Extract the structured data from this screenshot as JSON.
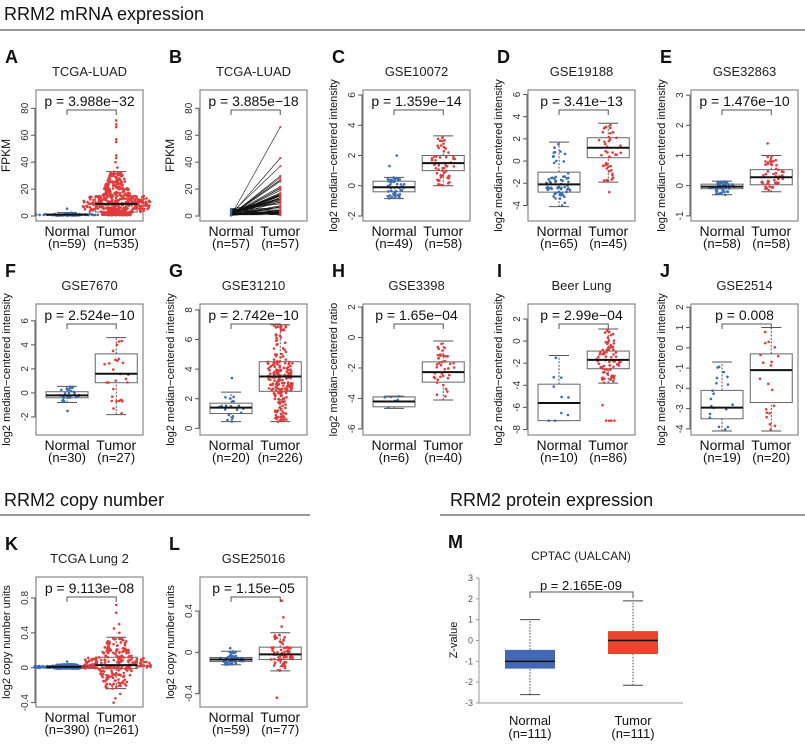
{
  "sections": {
    "mrna": "RRM2 mRNA expression",
    "copy": "RRM2 copy number",
    "protein": "RRM2 protein expression"
  },
  "colors": {
    "normal": "#3b6db3",
    "tumor": "#e23b3b",
    "normal_fill": "#4467b8",
    "tumor_fill": "#e8452c"
  },
  "chart_data": [
    {
      "letter": "A",
      "type": "box",
      "style": "swarm",
      "title": "TCGA-LUAD",
      "p": "p = 3.988e−32",
      "ylabel": "FPKM",
      "yticks": [
        0,
        20,
        40,
        60,
        80
      ],
      "ylim": [
        -3.7,
        93.6
      ],
      "groups": [
        {
          "name": "Normal",
          "n_label": "(n=59)",
          "n": 59,
          "stats": [
            0.3,
            0.7,
            1,
            1.4,
            2.5
          ],
          "outliers": [
            5.5
          ]
        },
        {
          "name": "Tumor",
          "n_label": "(n=535)",
          "n": 535,
          "stats": [
            0.5,
            3,
            9,
            15,
            33
          ],
          "outliers": [
            36,
            40,
            43,
            45,
            55,
            57,
            66,
            68,
            71
          ]
        }
      ]
    },
    {
      "letter": "B",
      "type": "paired-line",
      "title": "TCGA-LUAD",
      "p": "p = 3.885e−18",
      "ylabel": "FPKM",
      "yticks": [
        0,
        20,
        40,
        60,
        80
      ],
      "ylim": [
        -3.7,
        93.6
      ],
      "groups": [
        {
          "name": "Normal",
          "n_label": "(n=57)",
          "n": 57,
          "stats": [
            0.3,
            0.7,
            1,
            1.4,
            5.5
          ],
          "outliers": []
        },
        {
          "name": "Tumor",
          "n_label": "(n=57)",
          "n": 57,
          "stats": [
            0.5,
            4,
            9,
            16,
            30
          ],
          "outliers": [
            37,
            43,
            66
          ]
        }
      ]
    },
    {
      "letter": "C",
      "type": "box",
      "title": "GSE10072",
      "p": "p = 1.359e−14",
      "ylabel": "log2 median−centered intensity",
      "yticks": [
        -2,
        0,
        2,
        4,
        6
      ],
      "ylim": [
        -2.33,
        6.33
      ],
      "groups": [
        {
          "name": "Normal",
          "n_label": "(n=49)",
          "n": 49,
          "stats": [
            -0.85,
            -0.4,
            -0.1,
            0.3,
            0.55
          ],
          "outliers": [
            1.3,
            2.0
          ]
        },
        {
          "name": "Tumor",
          "n_label": "(n=58)",
          "n": 58,
          "stats": [
            0.0,
            1.0,
            1.5,
            2.0,
            3.3
          ],
          "outliers": []
        }
      ]
    },
    {
      "letter": "D",
      "type": "box",
      "title": "GSE19188",
      "p": "p = 3.41e−13",
      "ylabel": "log2 median−centered intensity",
      "yticks": [
        -4,
        -2,
        0,
        2,
        4,
        6
      ],
      "ylim": [
        -5.4,
        6.4
      ],
      "groups": [
        {
          "name": "Normal",
          "n_label": "(n=65)",
          "n": 65,
          "stats": [
            -4.1,
            -2.8,
            -2.1,
            -1.0,
            1.7
          ],
          "outliers": []
        },
        {
          "name": "Tumor",
          "n_label": "(n=45)",
          "n": 45,
          "stats": [
            -1.9,
            0.3,
            1.2,
            2.1,
            3.4
          ],
          "outliers": [
            -2.8
          ]
        }
      ]
    },
    {
      "letter": "E",
      "type": "box",
      "title": "GSE32863",
      "p": "p = 1.476e−10",
      "ylabel": "log2 median−centered intensity",
      "yticks": [
        -1,
        0,
        1,
        2,
        3
      ],
      "ylim": [
        -1.17,
        3.17
      ],
      "groups": [
        {
          "name": "Normal",
          "n_label": "(n=58)",
          "n": 58,
          "stats": [
            -0.3,
            -0.1,
            -0.03,
            0.05,
            0.15
          ],
          "outliers": []
        },
        {
          "name": "Tumor",
          "n_label": "(n=58)",
          "n": 58,
          "stats": [
            -0.2,
            0.03,
            0.28,
            0.53,
            1.0
          ],
          "outliers": [
            1.4
          ]
        }
      ]
    },
    {
      "letter": "F",
      "type": "box",
      "title": "GSE7670",
      "p": "p = 2.524e−10",
      "ylabel": "log2 median−centered intensity",
      "yticks": [
        -2,
        0,
        2,
        4,
        6
      ],
      "ylim": [
        -3.5,
        7.4
      ],
      "groups": [
        {
          "name": "Normal",
          "n_label": "(n=30)",
          "n": 30,
          "stats": [
            -0.8,
            -0.4,
            -0.2,
            0.1,
            0.55
          ],
          "outliers": [
            -1.5
          ]
        },
        {
          "name": "Tumor",
          "n_label": "(n=27)",
          "n": 27,
          "stats": [
            -1.8,
            0.85,
            1.6,
            3.25,
            4.6
          ],
          "outliers": []
        }
      ]
    },
    {
      "letter": "G",
      "type": "box",
      "title": "GSE31210",
      "p": "p = 2.742e−10",
      "ylabel": "log2 median−centered intensity",
      "yticks": [
        0,
        2,
        4,
        6,
        8
      ],
      "ylim": [
        -0.45,
        8.4
      ],
      "groups": [
        {
          "name": "Normal",
          "n_label": "(n=20)",
          "n": 20,
          "stats": [
            0.45,
            1.0,
            1.4,
            1.7,
            2.45
          ],
          "outliers": [
            3.4
          ]
        },
        {
          "name": "Tumor",
          "n_label": "(n=226)",
          "n": 226,
          "stats": [
            0.45,
            2.5,
            3.5,
            4.5,
            7.0
          ],
          "outliers": []
        }
      ]
    },
    {
      "letter": "H",
      "type": "box",
      "title": "GSE3398",
      "p": "p = 1.65e−04",
      "ylabel": "log2 median−centered ratio",
      "yticks": [
        -6,
        -4,
        -2,
        0,
        2
      ],
      "ylim": [
        -6.4,
        2.2
      ],
      "groups": [
        {
          "name": "Normal",
          "n_label": "(n=6)",
          "n": 6,
          "stats": [
            -4.65,
            -4.55,
            -4.2,
            -3.9,
            -3.85
          ],
          "outliers": []
        },
        {
          "name": "Tumor",
          "n_label": "(n=40)",
          "n": 40,
          "stats": [
            -4.1,
            -2.93,
            -2.27,
            -1.6,
            -0.23
          ],
          "outliers": []
        }
      ]
    },
    {
      "letter": "I",
      "type": "box",
      "title": "Beer Lung",
      "p": "p = 2.99e−04",
      "ylabel": "log2 median−centered intensity",
      "yticks": [
        -8,
        -6,
        -4,
        -2,
        0,
        2
      ],
      "ylim": [
        -8.5,
        3.36
      ],
      "groups": [
        {
          "name": "Normal",
          "n_label": "(n=10)",
          "n": 10,
          "stats": [
            -7.2,
            -7.2,
            -5.6,
            -3.9,
            -1.3
          ],
          "outliers": []
        },
        {
          "name": "Tumor",
          "n_label": "(n=86)",
          "n": 86,
          "stats": [
            -3.8,
            -2.5,
            -1.7,
            -0.9,
            1.1
          ],
          "outliers": [
            -5.8,
            -7.2,
            -7.2,
            -7.2,
            -7.2
          ]
        }
      ]
    },
    {
      "letter": "J",
      "type": "box",
      "title": "GSE2514",
      "p": "p = 0.008",
      "ylabel": "log2 median−centered intensity",
      "yticks": [
        -4,
        -3,
        -2,
        -1,
        0,
        1,
        2
      ],
      "ylim": [
        -4.3,
        2.16
      ],
      "groups": [
        {
          "name": "Normal",
          "n_label": "(n=19)",
          "n": 19,
          "stats": [
            -4.1,
            -3.5,
            -2.95,
            -2.1,
            -0.7
          ],
          "outliers": []
        },
        {
          "name": "Tumor",
          "n_label": "(n=20)",
          "n": 20,
          "stats": [
            -4.1,
            -2.7,
            -1.1,
            -0.3,
            1.0
          ],
          "outliers": []
        }
      ]
    },
    {
      "letter": "K",
      "type": "box",
      "style": "swarm",
      "title": "TCGA Lung 2",
      "p": "p = 9.113e−08",
      "ylabel": "log2 copy number units",
      "yticks": [
        -0.4,
        0.0,
        0.4,
        0.8
      ],
      "ylim": [
        -0.45,
        1.04
      ],
      "groups": [
        {
          "name": "Normal",
          "n_label": "(n=390)",
          "n": 390,
          "stats": [
            -0.01,
            0.0,
            0.01,
            0.02,
            0.04
          ],
          "outliers": [
            0.07
          ]
        },
        {
          "name": "Tumor",
          "n_label": "(n=261)",
          "n": 261,
          "stats": [
            -0.24,
            -0.01,
            0.03,
            0.12,
            0.35
          ],
          "outliers": [
            -0.3,
            -0.35,
            -0.4,
            0.4,
            0.45,
            0.5,
            0.63,
            0.72
          ]
        }
      ]
    },
    {
      "letter": "L",
      "type": "box",
      "title": "GSE25016",
      "p": "p = 1.15e−05",
      "ylabel": "log2 copy number units",
      "yticks": [
        -0.4,
        0.0,
        0.4
      ],
      "ylim": [
        -0.53,
        0.73
      ],
      "groups": [
        {
          "name": "Normal",
          "n_label": "(n=59)",
          "n": 59,
          "stats": [
            -0.12,
            -0.09,
            -0.07,
            -0.05,
            0.01
          ],
          "outliers": [
            0.04
          ]
        },
        {
          "name": "Tumor",
          "n_label": "(n=77)",
          "n": 77,
          "stats": [
            -0.18,
            -0.07,
            -0.02,
            0.05,
            0.19
          ],
          "outliers": [
            0.25,
            0.34,
            0.5,
            -0.44
          ]
        }
      ]
    },
    {
      "letter": "M",
      "type": "box",
      "style": "filled",
      "title": "CPTAC (UALCAN)",
      "p": "p = 2.165E-09",
      "ylabel": "Z-value",
      "yticks": [
        -3,
        -2,
        -1,
        0,
        1,
        2,
        3
      ],
      "ylim": [
        -3,
        3
      ],
      "groups": [
        {
          "name": "Normal",
          "n_label": "(n=111)",
          "n": 111,
          "stats": [
            -2.6,
            -1.35,
            -1.0,
            -0.45,
            1.0
          ],
          "outliers": []
        },
        {
          "name": "Tumor",
          "n_label": "(n=111)",
          "n": 111,
          "stats": [
            -2.15,
            -0.65,
            0.0,
            0.45,
            1.9
          ],
          "outliers": []
        }
      ]
    }
  ]
}
